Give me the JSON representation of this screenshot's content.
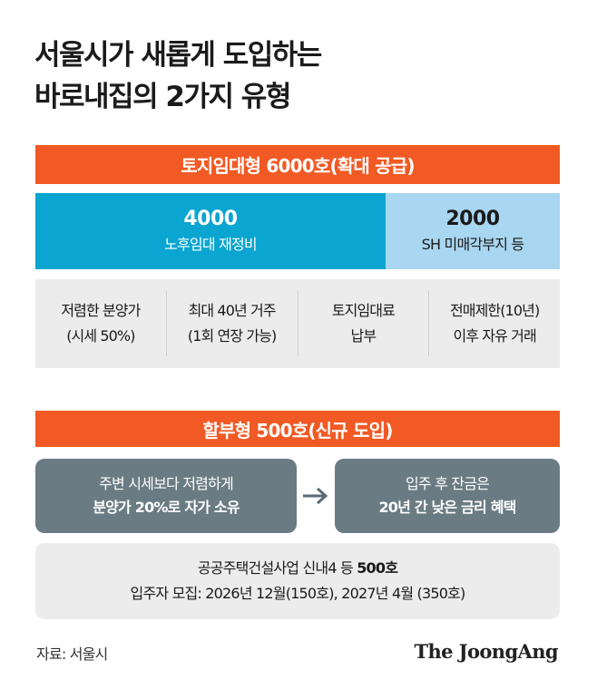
{
  "title": {
    "line1": "서울시가 새롭게 도입하는",
    "line2": "바로내집의 2가지 유형"
  },
  "land_lease": {
    "banner": "토지임대형 6000호(확대 공급)",
    "split": [
      {
        "number": "4000",
        "label": "노후임대 재정비"
      },
      {
        "number": "2000",
        "label": "SH 미매각부지 등"
      }
    ],
    "features": [
      {
        "line1": "저렴한 분양가",
        "line2": "(시세 50%)"
      },
      {
        "line1": "최대 40년 거주",
        "line2": "(1회 연장 가능)"
      },
      {
        "line1": "토지임대료",
        "line2": "납부"
      },
      {
        "line1": "전매제한(10년)",
        "line2": "이후 자유 거래"
      }
    ]
  },
  "installment": {
    "banner": "할부형 500호(신규 도입)",
    "step1": {
      "line1": "주변 시세보다 저렴하게",
      "line2": "분양가 20%로 자가 소유"
    },
    "step2": {
      "line1": "입주 후 잔금은",
      "line2": "20년 간 낮은 금리 혜택"
    },
    "info_line1_prefix": "공공주택건설사업 신내4 등 ",
    "info_line1_bold": "500호",
    "info_line2": "입주자 모집: 2026년 12월(150호), 2027년 4월 (350호)"
  },
  "source": "자료: 서울시",
  "brand": "The JoongAng",
  "colors": {
    "accent_orange": "#f15a24",
    "blue_dark": "#0aa5d0",
    "blue_light": "#a9d6f1",
    "slate": "#6a7b84",
    "panel_gray": "#ececec"
  },
  "icons": {
    "flow_arrow": "arrow-right-icon"
  }
}
